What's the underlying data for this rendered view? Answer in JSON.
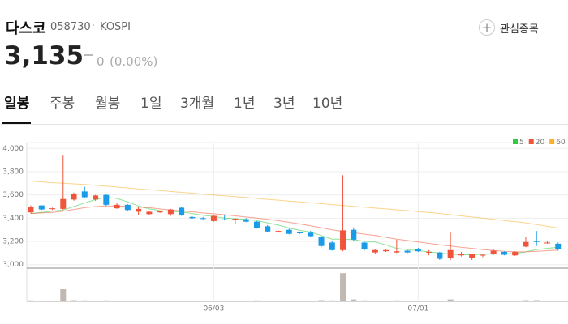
{
  "header": {
    "name": "다스코",
    "code": "058730",
    "separator": "·",
    "market": "KOSPI",
    "watch_button": "관심종목",
    "price": "3,135",
    "change": "0",
    "change_pct": "(0.00%)"
  },
  "tabs": [
    "일봉",
    "주봉",
    "월봉",
    "1일",
    "3개월",
    "1년",
    "3년",
    "10년"
  ],
  "chart_data": {
    "type": "candlestick",
    "categories": [
      null,
      null,
      null,
      null,
      null,
      null,
      null,
      null,
      null,
      null,
      null,
      null,
      null,
      null,
      null,
      null,
      null,
      "06/03",
      null,
      null,
      null,
      null,
      null,
      null,
      null,
      null,
      null,
      null,
      null,
      null,
      null,
      null,
      null,
      null,
      null,
      null,
      "07/01",
      null,
      null,
      null,
      null,
      null,
      null,
      null,
      null,
      null,
      null,
      null,
      null,
      null
    ],
    "open": [
      3450,
      3510,
      3480,
      3480,
      3560,
      3630,
      3560,
      3600,
      3485,
      3515,
      3455,
      3435,
      3450,
      3435,
      3490,
      3410,
      3400,
      3375,
      3390,
      3385,
      3390,
      3370,
      3330,
      3280,
      3300,
      3280,
      3275,
      3240,
      3190,
      3125,
      3300,
      3190,
      3105,
      3115,
      3105,
      3120,
      3130,
      3105,
      3105,
      3055,
      3080,
      3060,
      3080,
      3090,
      3110,
      3080,
      3155,
      3205,
      3185,
      3180
    ],
    "high": [
      3510,
      3510,
      3490,
      3945,
      3620,
      3670,
      3600,
      3610,
      3530,
      3520,
      3495,
      3460,
      3465,
      3480,
      3495,
      3415,
      3410,
      3425,
      3430,
      3400,
      3400,
      3375,
      3340,
      3295,
      3310,
      3285,
      3290,
      3245,
      3200,
      3770,
      3320,
      3195,
      3135,
      3130,
      3215,
      3125,
      3145,
      3125,
      3110,
      3275,
      3110,
      3095,
      3095,
      3130,
      3115,
      3115,
      3240,
      3290,
      3200,
      3190
    ],
    "low": [
      3440,
      3470,
      3470,
      3470,
      3550,
      3575,
      3550,
      3505,
      3480,
      3465,
      3430,
      3430,
      3445,
      3420,
      3420,
      3395,
      3390,
      3370,
      3380,
      3350,
      3365,
      3310,
      3280,
      3275,
      3260,
      3265,
      3240,
      3150,
      3120,
      3115,
      3200,
      3120,
      3090,
      3110,
      3100,
      3100,
      3110,
      3080,
      3040,
      3040,
      3070,
      3040,
      3065,
      3085,
      3080,
      3075,
      3150,
      3160,
      3180,
      3120
    ],
    "close": [
      3500,
      3475,
      3485,
      3565,
      3610,
      3580,
      3595,
      3515,
      3515,
      3470,
      3480,
      3455,
      3460,
      3475,
      3425,
      3400,
      3395,
      3420,
      3385,
      3395,
      3370,
      3315,
      3285,
      3290,
      3265,
      3270,
      3245,
      3160,
      3125,
      3295,
      3215,
      3135,
      3125,
      3125,
      3115,
      3105,
      3115,
      3110,
      3050,
      3125,
      3095,
      3090,
      3085,
      3120,
      3085,
      3110,
      3195,
      3195,
      3190,
      3135
    ],
    "up_color": "#f0553b",
    "down_color": "#1a9be8",
    "ylim": [
      2970,
      4030
    ],
    "yticks": [
      {
        "value": 4000,
        "label": "4,000"
      },
      {
        "value": 3800,
        "label": "3,800"
      },
      {
        "value": 3600,
        "label": "3,600"
      },
      {
        "value": 3400,
        "label": "3,400"
      },
      {
        "value": 3200,
        "label": "3,200"
      },
      {
        "value": 3000,
        "label": "3,000"
      }
    ],
    "grid": true,
    "series": [
      {
        "name": "5",
        "color": "#2ecc40",
        "values": [
          3440,
          3450,
          3460,
          3470,
          3500,
          3530,
          3560,
          3580,
          3570,
          3540,
          3505,
          3480,
          3465,
          3458,
          3455,
          3440,
          3425,
          3415,
          3400,
          3395,
          3390,
          3380,
          3360,
          3340,
          3315,
          3295,
          3280,
          3250,
          3220,
          3220,
          3215,
          3200,
          3195,
          3170,
          3140,
          3130,
          3120,
          3110,
          3100,
          3090,
          3085,
          3085,
          3090,
          3090,
          3095,
          3095,
          3110,
          3130,
          3140,
          3150
        ]
      },
      {
        "name": "20",
        "color": "#f0553b",
        "values": [
          3440,
          3445,
          3450,
          3460,
          3475,
          3490,
          3500,
          3505,
          3505,
          3500,
          3495,
          3490,
          3480,
          3470,
          3462,
          3455,
          3445,
          3438,
          3430,
          3420,
          3410,
          3400,
          3390,
          3378,
          3365,
          3350,
          3335,
          3318,
          3300,
          3285,
          3275,
          3262,
          3250,
          3235,
          3220,
          3208,
          3195,
          3183,
          3170,
          3160,
          3150,
          3140,
          3130,
          3122,
          3115,
          3110,
          3110,
          3115,
          3120,
          3125
        ]
      },
      {
        "name": "60",
        "color": "#f7b12e",
        "values": [
          3720,
          3712,
          3705,
          3700,
          3695,
          3690,
          3683,
          3675,
          3668,
          3660,
          3652,
          3645,
          3638,
          3630,
          3622,
          3615,
          3607,
          3600,
          3592,
          3585,
          3578,
          3570,
          3562,
          3555,
          3547,
          3540,
          3532,
          3525,
          3517,
          3510,
          3502,
          3495,
          3487,
          3480,
          3472,
          3465,
          3457,
          3450,
          3440,
          3430,
          3420,
          3410,
          3400,
          3390,
          3380,
          3370,
          3360,
          3345,
          3330,
          3315
        ]
      }
    ],
    "volume": {
      "color": "#c2b8b2",
      "ylim": [
        0,
        1200000
      ],
      "values": [
        40000,
        30000,
        20000,
        500000,
        50000,
        40000,
        30000,
        40000,
        20000,
        30000,
        30000,
        20000,
        20000,
        30000,
        30000,
        20000,
        20000,
        30000,
        20000,
        30000,
        20000,
        40000,
        30000,
        20000,
        20000,
        20000,
        20000,
        50000,
        40000,
        1160000,
        80000,
        40000,
        30000,
        20000,
        40000,
        20000,
        20000,
        20000,
        30000,
        80000,
        30000,
        20000,
        20000,
        20000,
        20000,
        20000,
        50000,
        50000,
        20000,
        30000
      ]
    }
  }
}
